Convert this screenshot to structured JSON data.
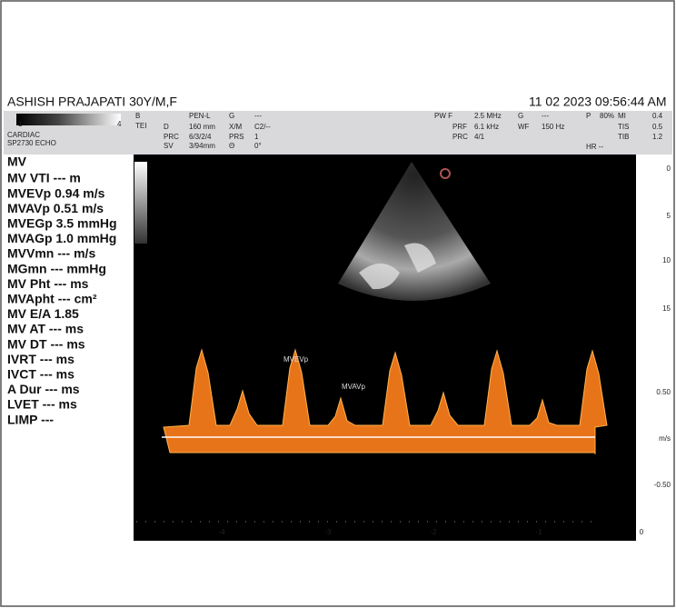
{
  "header": {
    "patient": "ASHISH PRAJAPATI  30Y/M,F",
    "datetime": "11  02  2023 09:56:44 AM"
  },
  "probe": {
    "scale_start": "1",
    "scale_end": "4",
    "application": "CARDIAC",
    "preset": "SP2730  ECHO"
  },
  "params": [
    {
      "label": "B",
      "value": "PEN-L"
    },
    {
      "label": "TEI",
      "value": ""
    },
    {
      "label": "D",
      "value": "160 mm"
    },
    {
      "label": "PRC",
      "value": "6/3/2/4"
    },
    {
      "label": "SV",
      "value": "3/94mm"
    },
    {
      "label": "G",
      "value": "---"
    },
    {
      "label": "X/M",
      "value": "C2/--"
    },
    {
      "label": "PRS",
      "value": "1"
    },
    {
      "label": "Θ",
      "value": "0°"
    },
    {
      "label": "PW  F",
      "value": "2.5 MHz"
    },
    {
      "label": "PRF",
      "value": "6.1 kHz"
    },
    {
      "label": "PRC",
      "value": "4/1"
    },
    {
      "label": "G",
      "value": "---"
    },
    {
      "label": "WF",
      "value": "150 Hz"
    },
    {
      "label": "P",
      "value": "80%"
    },
    {
      "label": "MI",
      "value": "0.4"
    },
    {
      "label": "TIS",
      "value": "0.5"
    },
    {
      "label": "TIB",
      "value": "1.2"
    },
    {
      "label": "HR --",
      "value": ""
    }
  ],
  "measurements": {
    "title": "MV",
    "items": [
      "MV VTI --- m",
      "MVEVp  0.94 m/s",
      "MVAVp  0.51 m/s",
      "MVEGp  3.5 mmHg",
      "MVAGp  1.0 mmHg",
      "MVVmn  --- m/s",
      "MGmn  --- mmHg",
      "MV Pht  --- ms",
      "MVApht  --- cm²",
      "MV E/A  1.85",
      "MV AT  --- ms",
      "MV DT  --- ms",
      "IVRT  --- ms",
      "IVCT  --- ms",
      "A Dur  --- ms",
      "LVET  --- ms",
      "LIMP  ---"
    ]
  },
  "image_labels": [
    "MVEVp",
    "MVAVp"
  ],
  "depth_scale": [
    "0",
    "5",
    "10",
    "15"
  ],
  "velocity_scale": [
    "0.50",
    "m/s",
    "-0.50"
  ],
  "time_scale": [
    "-4",
    "-3",
    "-2",
    "-1",
    "0"
  ]
}
